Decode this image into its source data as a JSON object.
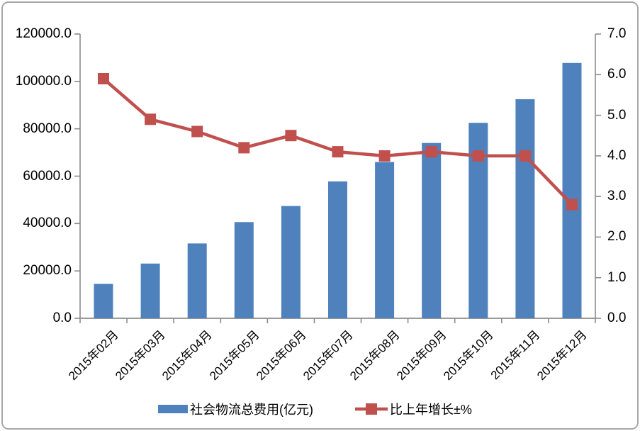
{
  "colors": {
    "bar": "#4F81BD",
    "line": "#C0504D",
    "axis": "#8C8C8C",
    "frame": "#A8A8A8",
    "text": "#000000",
    "background": "#FFFFFF"
  },
  "chart_data": {
    "type": "bar+line",
    "title": "",
    "categories": [
      "2015年02月",
      "2015年03月",
      "2015年04月",
      "2015年05月",
      "2015年06月",
      "2015年07月",
      "2015年08月",
      "2015年09月",
      "2015年10月",
      "2015年11月",
      "2015年12月"
    ],
    "series": [
      {
        "name": "社会物流总费用(亿元)",
        "type": "bar",
        "yaxis": "left",
        "color": "#4F81BD",
        "values": [
          14500,
          23100,
          31600,
          40600,
          47400,
          57800,
          66000,
          74000,
          82500,
          92500,
          107800
        ]
      },
      {
        "name": "比上年增长±%",
        "type": "line",
        "marker": "square",
        "yaxis": "right",
        "color": "#C0504D",
        "values": [
          5.9,
          4.9,
          4.6,
          4.2,
          4.5,
          4.1,
          4.0,
          4.1,
          4.0,
          4.0,
          2.8
        ]
      }
    ],
    "left_axis": {
      "min": 0,
      "max": 120000,
      "step": 20000,
      "tick_labels": [
        "0.0",
        "20000.0",
        "40000.0",
        "60000.0",
        "80000.0",
        "100000.0",
        "120000.0"
      ]
    },
    "right_axis": {
      "min": 0,
      "max": 7,
      "step": 1,
      "tick_labels": [
        "0.0",
        "1.0",
        "2.0",
        "3.0",
        "4.0",
        "5.0",
        "6.0",
        "7.0"
      ]
    },
    "grid": false,
    "legend_position": "bottom"
  }
}
